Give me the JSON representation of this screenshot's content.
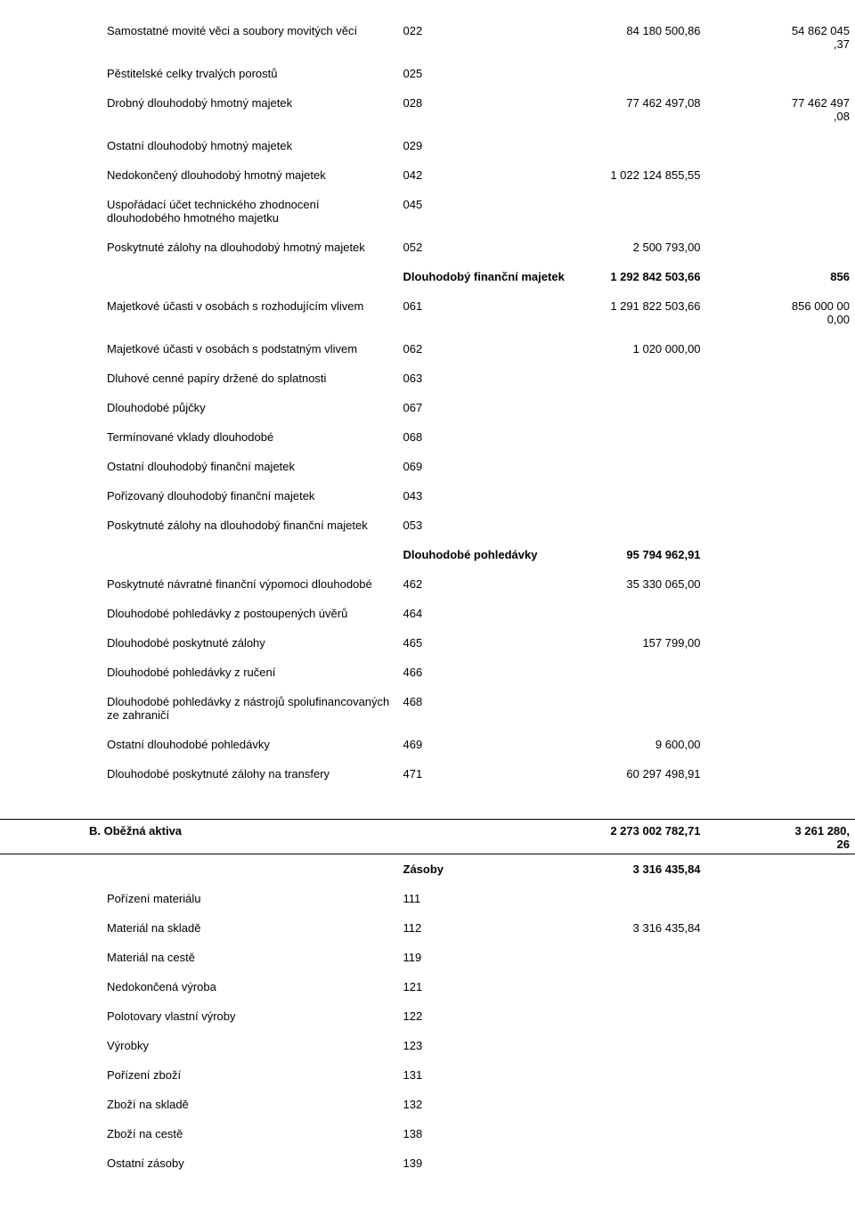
{
  "rows": [
    {
      "label": "Samostatné movité věci a soubory movitých věcí",
      "code": "022",
      "v1": "84 180 500,86",
      "v2": "54 862 045\n,37"
    },
    {
      "label": "Pěstitelské celky trvalých porostů",
      "code": "025",
      "v1": "",
      "v2": ""
    },
    {
      "label": "Drobný dlouhodobý hmotný majetek",
      "code": "028",
      "v1": "77 462 497,08",
      "v2": "77 462 497\n,08"
    },
    {
      "label": "Ostatní dlouhodobý hmotný majetek",
      "code": "029",
      "v1": "",
      "v2": ""
    },
    {
      "label": "Nedokončený dlouhodobý hmotný majetek",
      "code": "042",
      "v1": "1 022 124 855,55",
      "v2": ""
    },
    {
      "label": "Uspořádací účet technického zhodnocení dlouhodobého hmotného majetku",
      "code": "045",
      "v1": "",
      "v2": ""
    },
    {
      "label": "Poskytnuté zálohy na dlouhodobý hmotný majetek",
      "code": "052",
      "v1": "2 500 793,00",
      "v2": ""
    }
  ],
  "subhead_financni": {
    "label": "Dlouhodobý finanční majetek",
    "v1": "1 292 842 503,66",
    "v2": "856"
  },
  "rows_financni": [
    {
      "label": "Majetkové účasti v osobách s rozhodujícím vlivem",
      "code": "061",
      "v1": "1 291 822 503,66",
      "v2": "856 000 00\n0,00"
    },
    {
      "label": "Majetkové účasti v osobách s podstatným vlivem",
      "code": "062",
      "v1": "1 020 000,00",
      "v2": ""
    },
    {
      "label": "Dluhové cenné papíry držené do splatnosti",
      "code": "063",
      "v1": "",
      "v2": ""
    },
    {
      "label": "Dlouhodobé půjčky",
      "code": "067",
      "v1": "",
      "v2": ""
    },
    {
      "label": "Termínované vklady dlouhodobé",
      "code": "068",
      "v1": "",
      "v2": ""
    },
    {
      "label": "Ostatní dlouhodobý finanční majetek",
      "code": "069",
      "v1": "",
      "v2": ""
    },
    {
      "label": "Pořizovaný dlouhodobý finanční majetek",
      "code": "043",
      "v1": "",
      "v2": ""
    },
    {
      "label": "Poskytnuté zálohy na dlouhodobý finanční majetek",
      "code": "053",
      "v1": "",
      "v2": ""
    }
  ],
  "subhead_pohledavky": {
    "label": "Dlouhodobé pohledávky",
    "v1": "95 794 962,91",
    "v2": ""
  },
  "rows_pohledavky": [
    {
      "label": "Poskytnuté návratné finanční výpomoci dlouhodobé",
      "code": "462",
      "v1": "35 330 065,00",
      "v2": ""
    },
    {
      "label": "Dlouhodobé pohledávky z postoupených úvěrů",
      "code": "464",
      "v1": "",
      "v2": ""
    },
    {
      "label": "Dlouhodobé poskytnuté zálohy",
      "code": "465",
      "v1": "157 799,00",
      "v2": ""
    },
    {
      "label": "Dlouhodobé pohledávky z ručení",
      "code": "466",
      "v1": "",
      "v2": ""
    },
    {
      "label": "Dlouhodobé pohledávky z nástrojů spolufinancovaných ze zahraničí",
      "code": "468",
      "v1": "",
      "v2": ""
    },
    {
      "label": "Ostatní dlouhodobé pohledávky",
      "code": "469",
      "v1": "9 600,00",
      "v2": ""
    },
    {
      "label": "Dlouhodobé poskytnuté zálohy na transfery",
      "code": "471",
      "v1": "60 297 498,91",
      "v2": ""
    }
  ],
  "section_b": {
    "label": "B. Oběžná aktiva",
    "v1": "2 273 002 782,71",
    "v2": "3 261 280,\n26"
  },
  "subhead_zasoby": {
    "label": "Zásoby",
    "v1": "3 316 435,84"
  },
  "rows_zasoby": [
    {
      "label": "Pořízení materiálu",
      "code": "111",
      "v1": "",
      "v2": ""
    },
    {
      "label": "Materiál na skladě",
      "code": "112",
      "v1": "3 316 435,84",
      "v2": ""
    },
    {
      "label": "Materiál na cestě",
      "code": "119",
      "v1": "",
      "v2": ""
    },
    {
      "label": "Nedokončená výroba",
      "code": "121",
      "v1": "",
      "v2": ""
    },
    {
      "label": "Polotovary vlastní výroby",
      "code": "122",
      "v1": "",
      "v2": ""
    },
    {
      "label": "Výrobky",
      "code": "123",
      "v1": "",
      "v2": ""
    },
    {
      "label": "Pořízení zboží",
      "code": "131",
      "v1": "",
      "v2": ""
    },
    {
      "label": "Zboží na skladě",
      "code": "132",
      "v1": "",
      "v2": ""
    },
    {
      "label": "Zboží na cestě",
      "code": "138",
      "v1": "",
      "v2": ""
    },
    {
      "label": "Ostatní zásoby",
      "code": "139",
      "v1": "",
      "v2": ""
    }
  ]
}
